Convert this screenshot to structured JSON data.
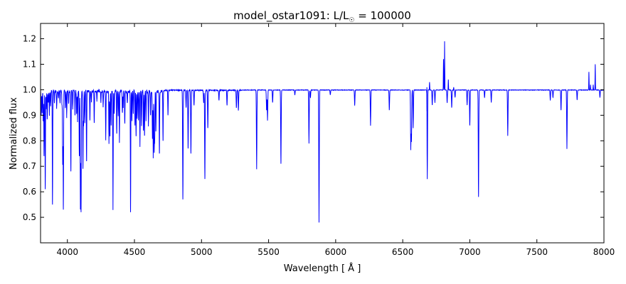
{
  "chart_data": {
    "type": "line",
    "title": "model_ostar1091: L/L",
    "title_sub": "☉",
    "title_suffix": " = 100000",
    "xlabel": "Wavelength [ Å ]",
    "ylabel": "Normalized flux",
    "xlim": [
      3800,
      8000
    ],
    "ylim": [
      0.4,
      1.26
    ],
    "xticks": [
      4000,
      4500,
      5000,
      5500,
      6000,
      6500,
      7000,
      7500,
      8000
    ],
    "yticks": [
      0.5,
      0.6,
      0.7,
      0.8,
      0.9,
      1.0,
      1.1,
      1.2
    ],
    "grid": false,
    "continuum": 1.0,
    "series": [
      {
        "color": "#0000ff",
        "absorption_lines": [
          [
            3805,
            0.9
          ],
          [
            3812,
            0.92
          ],
          [
            3820,
            0.88
          ],
          [
            3826,
            0.74
          ],
          [
            3835,
            0.61
          ],
          [
            3842,
            0.93
          ],
          [
            3850,
            0.89
          ],
          [
            3858,
            0.95
          ],
          [
            3866,
            0.91
          ],
          [
            3875,
            0.94
          ],
          [
            3889,
            0.55
          ],
          [
            3903,
            0.95
          ],
          [
            3920,
            0.93
          ],
          [
            3933,
            0.97
          ],
          [
            3945,
            0.95
          ],
          [
            3960,
            0.94
          ],
          [
            3965,
            0.72
          ],
          [
            3970,
            0.53
          ],
          [
            3985,
            0.93
          ],
          [
            3995,
            0.9
          ],
          [
            4009,
            0.95
          ],
          [
            4026,
            0.68
          ],
          [
            4040,
            0.93
          ],
          [
            4057,
            0.9
          ],
          [
            4069,
            0.91
          ],
          [
            4076,
            0.88
          ],
          [
            4089,
            0.74
          ],
          [
            4097,
            0.54
          ],
          [
            4102,
            0.52
          ],
          [
            4116,
            0.69
          ],
          [
            4121,
            0.86
          ],
          [
            4130,
            0.87
          ],
          [
            4143,
            0.72
          ],
          [
            4168,
            0.88
          ],
          [
            4179,
            0.96
          ],
          [
            4200,
            0.87
          ],
          [
            4220,
            0.96
          ],
          [
            4250,
            0.95
          ],
          [
            4267,
            0.94
          ],
          [
            4286,
            0.81
          ],
          [
            4310,
            0.79
          ],
          [
            4317,
            0.82
          ],
          [
            4326,
            0.86
          ],
          [
            4340,
            0.54
          ],
          [
            4349,
            0.91
          ],
          [
            4368,
            0.83
          ],
          [
            4379,
            0.9
          ],
          [
            4388,
            0.8
          ],
          [
            4410,
            0.91
          ],
          [
            4416,
            0.93
          ],
          [
            4428,
            0.87
          ],
          [
            4447,
            0.95
          ],
          [
            4471,
            0.52
          ],
          [
            4481,
            0.88
          ],
          [
            4491,
            0.91
          ],
          [
            4504,
            0.86
          ],
          [
            4512,
            0.82
          ],
          [
            4520,
            0.89
          ],
          [
            4530,
            0.88
          ],
          [
            4541,
            0.78
          ],
          [
            4553,
            0.86
          ],
          [
            4567,
            0.84
          ],
          [
            4575,
            0.82
          ],
          [
            4586,
            0.88
          ],
          [
            4604,
            0.86
          ],
          [
            4620,
            0.9
          ],
          [
            4634,
            0.81
          ],
          [
            4640,
            0.74
          ],
          [
            4647,
            0.76
          ],
          [
            4651,
            0.8
          ],
          [
            4660,
            0.84
          ],
          [
            4686,
            0.75
          ],
          [
            4713,
            0.8
          ],
          [
            4750,
            0.9
          ],
          [
            4861,
            0.57
          ],
          [
            4885,
            0.93
          ],
          [
            4900,
            0.77
          ],
          [
            4921,
            0.75
          ],
          [
            4944,
            0.94
          ],
          [
            5016,
            0.95
          ],
          [
            5025,
            0.65
          ],
          [
            5047,
            0.85
          ],
          [
            5130,
            0.96
          ],
          [
            5190,
            0.94
          ],
          [
            5260,
            0.93
          ],
          [
            5275,
            0.92
          ],
          [
            5411,
            0.69
          ],
          [
            5485,
            0.92
          ],
          [
            5492,
            0.88
          ],
          [
            5530,
            0.95
          ],
          [
            5592,
            0.71
          ],
          [
            5696,
            0.98
          ],
          [
            5801,
            0.79
          ],
          [
            5812,
            0.97
          ],
          [
            5876,
            0.48
          ],
          [
            5960,
            0.98
          ],
          [
            6142,
            0.94
          ],
          [
            6260,
            0.86
          ],
          [
            6400,
            0.92
          ],
          [
            6560,
            0.77
          ],
          [
            6565,
            0.8
          ],
          [
            6578,
            0.85
          ],
          [
            6683,
            0.65
          ],
          [
            6720,
            0.94
          ],
          [
            6740,
            0.95
          ],
          [
            6831,
            0.95
          ],
          [
            6865,
            0.93
          ],
          [
            6890,
            0.97
          ],
          [
            6980,
            0.94
          ],
          [
            7000,
            0.86
          ],
          [
            7065,
            0.58
          ],
          [
            7110,
            0.97
          ],
          [
            7160,
            0.95
          ],
          [
            7283,
            0.82
          ],
          [
            7600,
            0.96
          ],
          [
            7620,
            0.97
          ],
          [
            7680,
            0.92
          ],
          [
            7724,
            0.77
          ],
          [
            7800,
            0.96
          ],
          [
            7970,
            0.97
          ]
        ],
        "emission_lines": [
          [
            6680,
            1.01
          ],
          [
            6700,
            1.03
          ],
          [
            6804,
            1.12
          ],
          [
            6812,
            1.19
          ],
          [
            6840,
            1.04
          ],
          [
            6880,
            1.01
          ],
          [
            7900,
            1.02
          ],
          [
            7888,
            1.07
          ],
          [
            7920,
            1.02
          ],
          [
            7935,
            1.1
          ]
        ]
      }
    ]
  }
}
